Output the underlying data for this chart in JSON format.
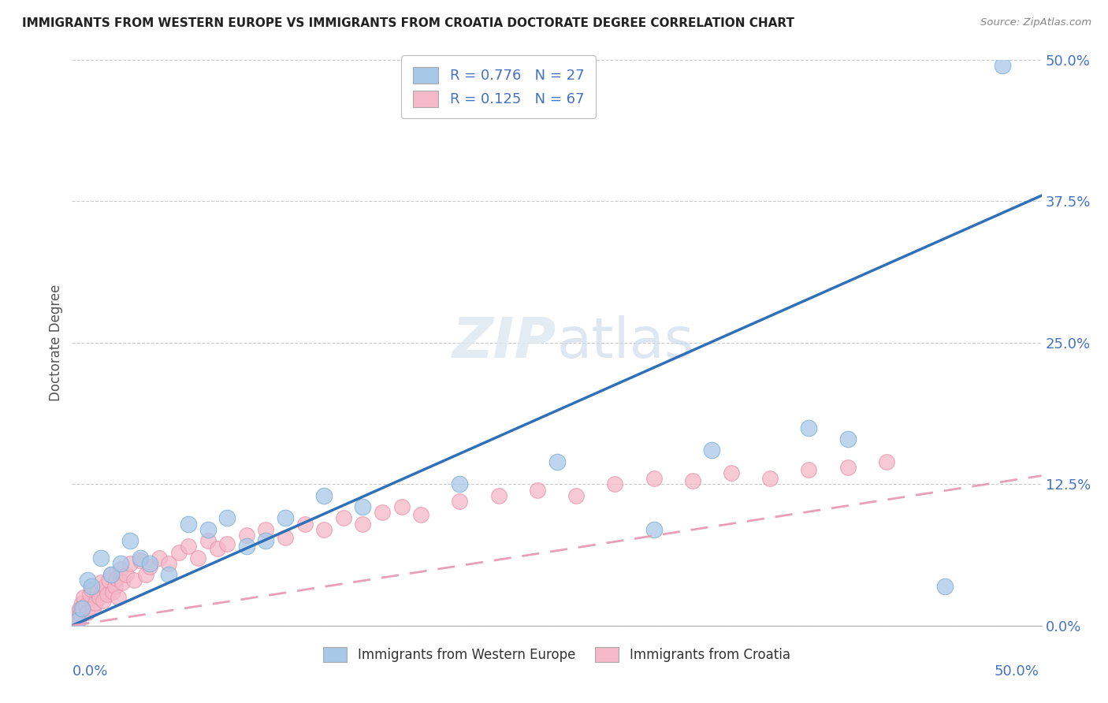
{
  "title": "IMMIGRANTS FROM WESTERN EUROPE VS IMMIGRANTS FROM CROATIA DOCTORATE DEGREE CORRELATION CHART",
  "source": "Source: ZipAtlas.com",
  "ylabel": "Doctorate Degree",
  "ytick_labels": [
    "0.0%",
    "12.5%",
    "25.0%",
    "37.5%",
    "50.0%"
  ],
  "ytick_values": [
    0.0,
    12.5,
    25.0,
    37.5,
    50.0
  ],
  "xlim": [
    0,
    50
  ],
  "ylim": [
    0,
    50
  ],
  "blue_R": "0.776",
  "blue_N": "27",
  "pink_R": "0.125",
  "pink_N": "67",
  "legend_label_blue": "Immigrants from Western Europe",
  "legend_label_pink": "Immigrants from Croatia",
  "blue_color": "#a8c8e8",
  "pink_color": "#f4b8c8",
  "blue_edge_color": "#7aaed0",
  "pink_edge_color": "#e890a8",
  "blue_line_color": "#3070b8",
  "pink_line_color": "#e8a0b8",
  "title_color": "#222222",
  "axis_label_color": "#4472c4",
  "blue_line_slope": 0.76,
  "blue_line_intercept": 0.0,
  "pink_line_slope": 0.265,
  "pink_line_intercept": 0.0,
  "blue_scatter_x": [
    0.3,
    0.5,
    0.8,
    1.0,
    1.5,
    2.0,
    2.5,
    3.0,
    3.5,
    4.0,
    5.0,
    6.0,
    7.0,
    8.0,
    9.0,
    10.0,
    11.0,
    13.0,
    15.0,
    20.0,
    25.0,
    30.0,
    33.0,
    38.0,
    40.0,
    45.0,
    48.0
  ],
  "blue_scatter_y": [
    0.5,
    1.5,
    4.0,
    3.5,
    6.0,
    4.5,
    5.5,
    7.5,
    6.0,
    5.5,
    4.5,
    9.0,
    8.5,
    9.5,
    7.0,
    7.5,
    9.5,
    11.5,
    10.5,
    12.5,
    14.5,
    8.5,
    15.5,
    17.5,
    16.5,
    3.5,
    49.5
  ],
  "pink_scatter_x": [
    0.1,
    0.15,
    0.2,
    0.25,
    0.3,
    0.35,
    0.4,
    0.45,
    0.5,
    0.55,
    0.6,
    0.7,
    0.8,
    0.9,
    1.0,
    1.1,
    1.2,
    1.3,
    1.4,
    1.5,
    1.6,
    1.7,
    1.8,
    1.9,
    2.0,
    2.1,
    2.2,
    2.3,
    2.4,
    2.5,
    2.6,
    2.8,
    3.0,
    3.2,
    3.5,
    3.8,
    4.0,
    4.5,
    5.0,
    5.5,
    6.0,
    6.5,
    7.0,
    7.5,
    8.0,
    9.0,
    10.0,
    11.0,
    12.0,
    13.0,
    14.0,
    15.0,
    16.0,
    17.0,
    18.0,
    20.0,
    22.0,
    24.0,
    26.0,
    28.0,
    30.0,
    32.0,
    34.0,
    36.0,
    38.0,
    40.0,
    42.0
  ],
  "pink_scatter_y": [
    0.2,
    0.4,
    0.8,
    0.5,
    1.2,
    0.8,
    1.5,
    1.0,
    2.0,
    1.5,
    2.5,
    1.8,
    1.2,
    2.8,
    3.2,
    1.5,
    2.0,
    3.0,
    2.5,
    3.8,
    2.2,
    3.5,
    2.8,
    4.0,
    4.5,
    3.0,
    3.5,
    4.2,
    2.5,
    5.0,
    3.8,
    4.5,
    5.5,
    4.0,
    5.8,
    4.5,
    5.2,
    6.0,
    5.5,
    6.5,
    7.0,
    6.0,
    7.5,
    6.8,
    7.2,
    8.0,
    8.5,
    7.8,
    9.0,
    8.5,
    9.5,
    9.0,
    10.0,
    10.5,
    9.8,
    11.0,
    11.5,
    12.0,
    11.5,
    12.5,
    13.0,
    12.8,
    13.5,
    13.0,
    13.8,
    14.0,
    14.5
  ]
}
